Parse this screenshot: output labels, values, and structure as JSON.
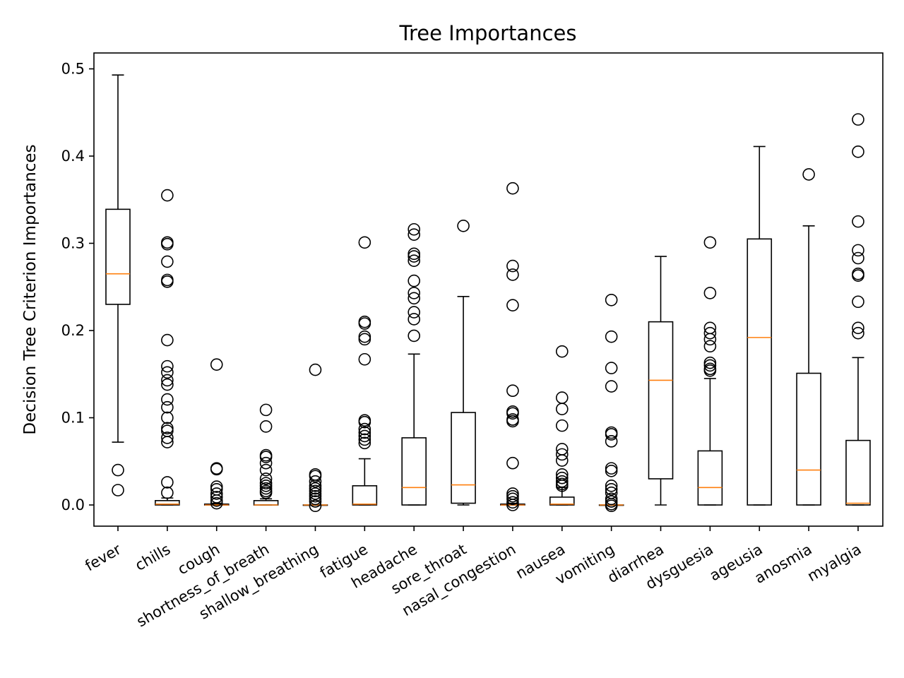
{
  "chart_data": {
    "type": "boxplot",
    "title": "Tree Importances",
    "xlabel": "",
    "ylabel": "Decision Tree Criterion Importances",
    "ylim": [
      -0.025,
      0.52
    ],
    "yticks": [
      0.0,
      0.1,
      0.2,
      0.3,
      0.4,
      0.5
    ],
    "ytick_labels": [
      "0.0",
      "0.1",
      "0.2",
      "0.3",
      "0.4",
      "0.5"
    ],
    "grid": false,
    "colors": {
      "box": "#000000",
      "median": "#ff7f0e",
      "flier": "#000000"
    },
    "categories": [
      "fever",
      "chills",
      "cough",
      "shortness_of_breath",
      "shallow_breathing",
      "fatigue",
      "headache",
      "sore_throat",
      "nasal_congestion",
      "nausea",
      "vomiting",
      "diarrhea",
      "dysguesia",
      "ageusia",
      "anosmia",
      "myalgia"
    ],
    "boxes": [
      {
        "name": "fever",
        "whislo": 0.072,
        "q1": 0.23,
        "med": 0.265,
        "q3": 0.339,
        "whishi": 0.493,
        "fliers": [
          0.04,
          0.017
        ]
      },
      {
        "name": "chills",
        "whislo": 0.0,
        "q1": 0.0,
        "med": 0.001,
        "q3": 0.005,
        "whishi": 0.008,
        "fliers": [
          0.355,
          0.301,
          0.299,
          0.279,
          0.258,
          0.256,
          0.189,
          0.159,
          0.152,
          0.143,
          0.138,
          0.121,
          0.112,
          0.1,
          0.088,
          0.085,
          0.077,
          0.072,
          0.026,
          0.014
        ]
      },
      {
        "name": "cough",
        "whislo": 0.0,
        "q1": 0.0,
        "med": 0.0,
        "q3": 0.001,
        "whishi": 0.002,
        "fliers": [
          0.161,
          0.042,
          0.041,
          0.021,
          0.018,
          0.013,
          0.009,
          0.005,
          0.002
        ]
      },
      {
        "name": "shortness_of_breath",
        "whislo": 0.0,
        "q1": 0.0,
        "med": 0.0,
        "q3": 0.005,
        "whishi": 0.007,
        "fliers": [
          0.109,
          0.09,
          0.057,
          0.055,
          0.048,
          0.04,
          0.03,
          0.025,
          0.022,
          0.019,
          0.016,
          0.014
        ]
      },
      {
        "name": "shallow_breathing",
        "whislo": 0.0,
        "q1": 0.0,
        "med": 0.0,
        "q3": 0.0,
        "whishi": 0.0,
        "fliers": [
          0.155,
          0.035,
          0.033,
          0.027,
          0.022,
          0.019,
          0.016,
          0.013,
          0.01,
          0.007,
          0.004,
          -0.001
        ]
      },
      {
        "name": "fatigue",
        "whislo": 0.0,
        "q1": 0.0,
        "med": 0.001,
        "q3": 0.022,
        "whishi": 0.053,
        "fliers": [
          0.301,
          0.21,
          0.208,
          0.193,
          0.19,
          0.167,
          0.097,
          0.095,
          0.087,
          0.083,
          0.079,
          0.075,
          0.071
        ]
      },
      {
        "name": "headache",
        "whislo": 0.0,
        "q1": 0.0,
        "med": 0.02,
        "q3": 0.077,
        "whishi": 0.173,
        "fliers": [
          0.316,
          0.31,
          0.288,
          0.285,
          0.28,
          0.257,
          0.243,
          0.237,
          0.221,
          0.213,
          0.194
        ]
      },
      {
        "name": "sore_throat",
        "whislo": 0.0,
        "q1": 0.002,
        "med": 0.023,
        "q3": 0.106,
        "whishi": 0.239,
        "fliers": [
          0.32
        ]
      },
      {
        "name": "nasal_congestion",
        "whislo": 0.0,
        "q1": 0.0,
        "med": 0.0,
        "q3": 0.001,
        "whishi": 0.002,
        "fliers": [
          0.363,
          0.274,
          0.264,
          0.229,
          0.131,
          0.107,
          0.105,
          0.098,
          0.096,
          0.048,
          0.013,
          0.01,
          0.007,
          0.003,
          0.0
        ]
      },
      {
        "name": "nausea",
        "whislo": 0.0,
        "q1": 0.0,
        "med": 0.001,
        "q3": 0.009,
        "whishi": 0.02,
        "fliers": [
          0.176,
          0.123,
          0.11,
          0.091,
          0.064,
          0.058,
          0.051,
          0.035,
          0.031,
          0.027,
          0.024,
          0.022
        ]
      },
      {
        "name": "vomiting",
        "whislo": 0.0,
        "q1": 0.0,
        "med": 0.0,
        "q3": 0.0,
        "whishi": 0.0,
        "fliers": [
          0.235,
          0.193,
          0.157,
          0.136,
          0.083,
          0.081,
          0.073,
          0.042,
          0.039,
          0.022,
          0.018,
          0.014,
          0.007,
          0.004,
          0.001,
          -0.001
        ]
      },
      {
        "name": "diarrhea",
        "whislo": 0.0,
        "q1": 0.03,
        "med": 0.143,
        "q3": 0.21,
        "whishi": 0.285,
        "fliers": []
      },
      {
        "name": "dysguesia",
        "whislo": 0.0,
        "q1": 0.0,
        "med": 0.02,
        "q3": 0.062,
        "whishi": 0.145,
        "fliers": [
          0.301,
          0.243,
          0.203,
          0.197,
          0.19,
          0.182,
          0.163,
          0.16,
          0.156,
          0.154
        ]
      },
      {
        "name": "ageusia",
        "whislo": 0.0,
        "q1": 0.0,
        "med": 0.192,
        "q3": 0.305,
        "whishi": 0.411,
        "fliers": []
      },
      {
        "name": "anosmia",
        "whislo": 0.0,
        "q1": 0.0,
        "med": 0.04,
        "q3": 0.151,
        "whishi": 0.32,
        "fliers": [
          0.379
        ]
      },
      {
        "name": "myalgia",
        "whislo": 0.0,
        "q1": 0.0,
        "med": 0.002,
        "q3": 0.074,
        "whishi": 0.169,
        "fliers": [
          0.442,
          0.405,
          0.325,
          0.292,
          0.283,
          0.265,
          0.263,
          0.233,
          0.203,
          0.197
        ]
      }
    ]
  }
}
